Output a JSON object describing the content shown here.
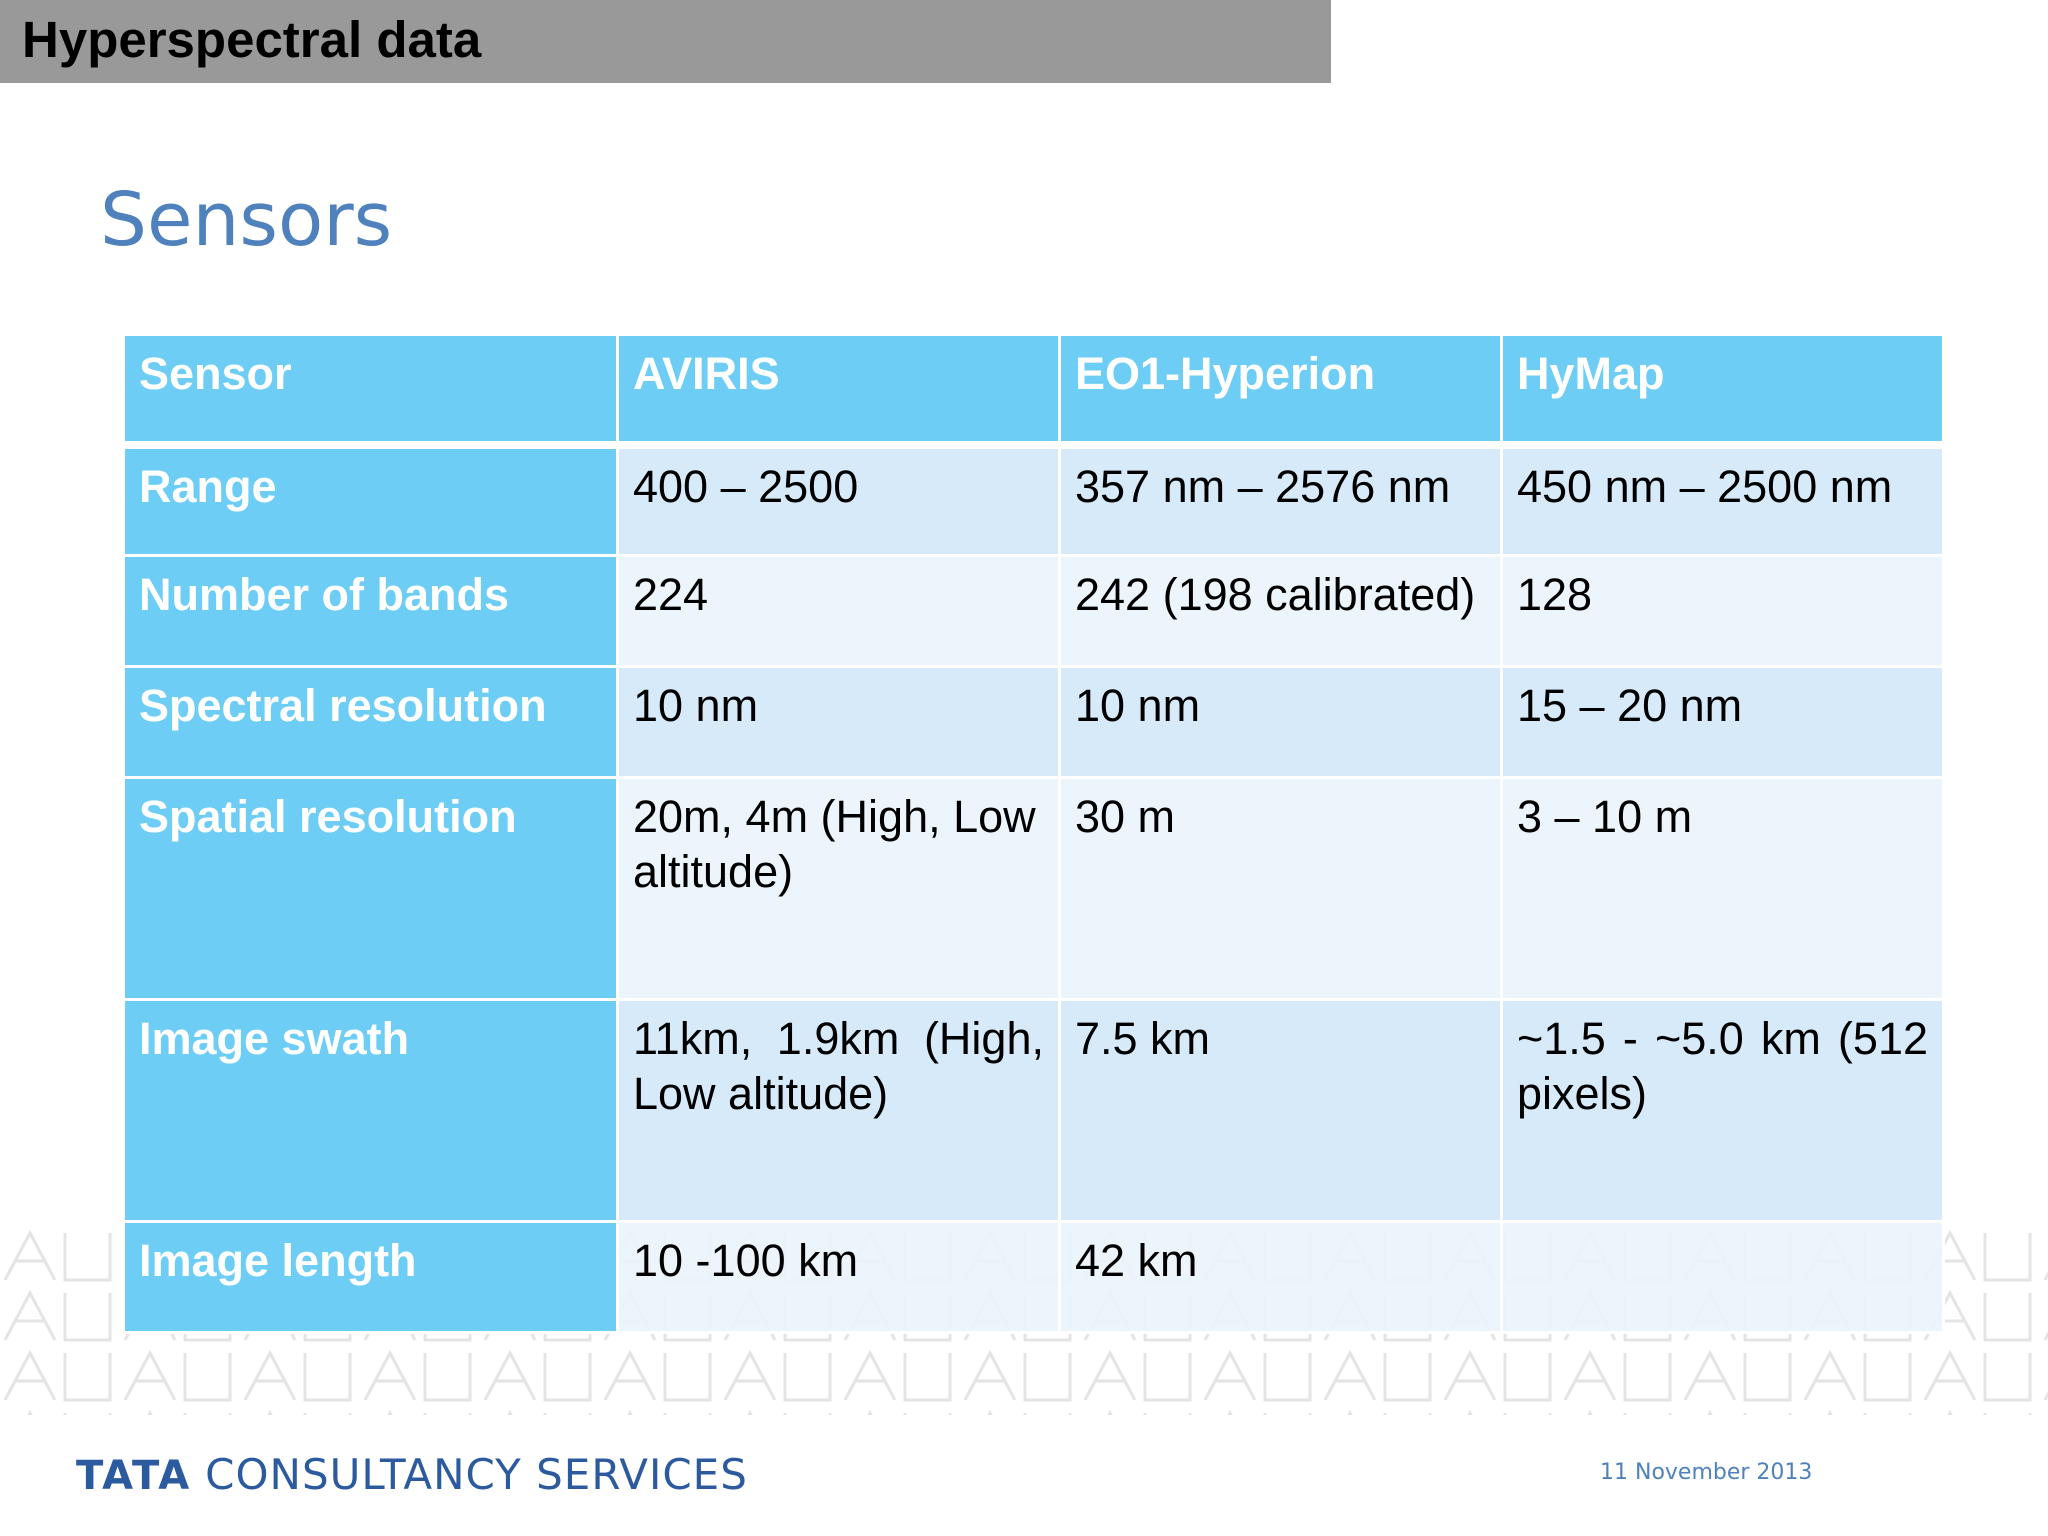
{
  "header": {
    "title": "Hyperspectral data"
  },
  "slide": {
    "subtitle": "Sensors"
  },
  "table": {
    "columns": [
      "Sensor",
      "AVIRIS",
      "EO1-Hyperion",
      "HyMap"
    ],
    "rows": [
      [
        "Range",
        "400 – 2500",
        "357 nm – 2576 nm",
        "450 nm – 2500 nm"
      ],
      [
        "Number of bands",
        "224",
        "242 (198 calibrated)",
        "128"
      ],
      [
        "Spectral resolution",
        "10 nm",
        "10 nm",
        "15 – 20 nm"
      ],
      [
        "Spatial resolution",
        "20m, 4m (High, Low altitude)",
        "30 m",
        "3 – 10 m"
      ],
      [
        "Image swath",
        "11km, 1.9km (High, Low altitude)",
        "7.5 km",
        "~1.5 - ~5.0 km (512 pixels)"
      ],
      [
        "Image length",
        "10 -100 km",
        "42 km",
        ""
      ]
    ]
  },
  "footer": {
    "logo_word": "TATA",
    "logo_text": "CONSULTANCY SERVICES",
    "date": "11 November 2013"
  },
  "colors": {
    "title_bar": "#999999",
    "subtitle": "#4f81bd",
    "table_header": "#6dcdf5",
    "cell_dark": "#d2e8fa",
    "cell_light": "#eaf3fc",
    "logo": "#2b5a9e"
  }
}
